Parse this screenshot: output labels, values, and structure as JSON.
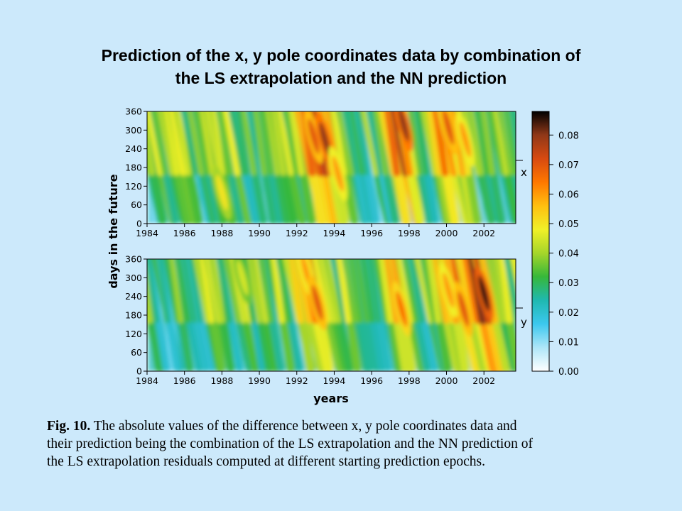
{
  "slide": {
    "title_line1": "Prediction of the x, y pole coordinates data by combination of",
    "title_line2": "the LS extrapolation and the NN prediction"
  },
  "caption": {
    "label": "Fig. 10.",
    "line1_rest": " The absolute values of the difference between x, y pole coordinates data and",
    "line2": "their prediction being the combination of the LS extrapolation and the NN prediction of",
    "line3": "the LS extrapolation residuals computed at different starting prediction epochs."
  },
  "chart_data": {
    "type": "heatmap",
    "ylabel": "days in the future",
    "xlabel": "years",
    "xlim": [
      1984,
      2003.7
    ],
    "ylim": [
      0,
      360
    ],
    "x_ticks": [
      "1984",
      "1986",
      "1988",
      "1990",
      "1992",
      "1994",
      "1996",
      "1998",
      "2000",
      "2002"
    ],
    "y_ticks": [
      "0",
      "60",
      "120",
      "180",
      "240",
      "300",
      "360"
    ],
    "panels": [
      {
        "label": "x",
        "hotspots": [
          {
            "year": 1992.9,
            "day": 280,
            "value": 0.07
          },
          {
            "year": 1993.5,
            "day": 270,
            "value": 0.08
          },
          {
            "year": 1994.2,
            "day": 160,
            "value": 0.06
          },
          {
            "year": 1997.7,
            "day": 320,
            "value": 0.08
          },
          {
            "year": 2000.1,
            "day": 310,
            "value": 0.07
          },
          {
            "year": 2001.0,
            "day": 270,
            "value": 0.06
          },
          {
            "year": 1988.0,
            "day": 100,
            "value": 0.05
          }
        ]
      },
      {
        "label": "y",
        "hotspots": [
          {
            "year": 1992.5,
            "day": 320,
            "value": 0.06
          },
          {
            "year": 1993.1,
            "day": 220,
            "value": 0.07
          },
          {
            "year": 1997.6,
            "day": 200,
            "value": 0.065
          },
          {
            "year": 2000.1,
            "day": 260,
            "value": 0.06
          },
          {
            "year": 2000.9,
            "day": 200,
            "value": 0.07
          },
          {
            "year": 2002.0,
            "day": 250,
            "value": 0.085
          },
          {
            "year": 1989.1,
            "day": 300,
            "value": 0.045
          }
        ]
      }
    ],
    "colorbar": {
      "min": 0,
      "max": 0.088,
      "ticks": [
        "0.00",
        "0.01",
        "0.02",
        "0.03",
        "0.04",
        "0.05",
        "0.06",
        "0.07",
        "0.08"
      ],
      "colors": [
        "#ffffff",
        "#aee6f8",
        "#3cc8ee",
        "#1fb8b0",
        "#37b83a",
        "#a6d62a",
        "#f0f028",
        "#ffc010",
        "#ff7800",
        "#d84a10",
        "#903818",
        "#000000"
      ]
    }
  }
}
